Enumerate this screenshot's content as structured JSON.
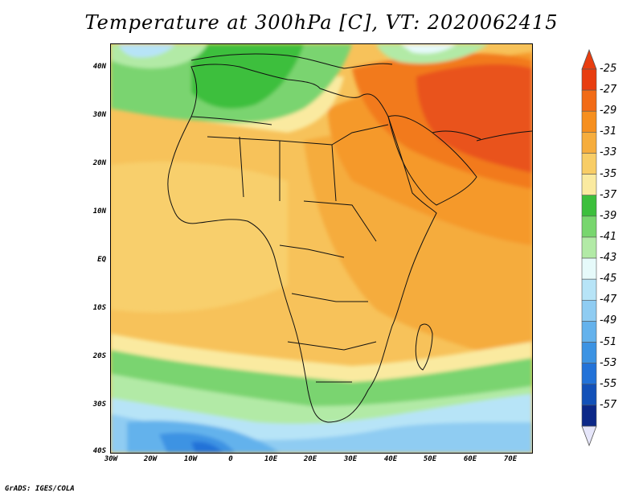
{
  "title": "Temperature at 300hPa [C], VT: 2020062415",
  "credit": "GrADS: IGES/COLA",
  "map": {
    "region": "Africa",
    "lat_ticks": [
      "40N",
      "30N",
      "20N",
      "10N",
      "EQ",
      "10S",
      "20S",
      "30S",
      "40S"
    ],
    "lon_ticks": [
      "30W",
      "20W",
      "10W",
      "0",
      "10E",
      "20E",
      "30E",
      "40E",
      "50E",
      "60E",
      "70E"
    ]
  },
  "colorbar": {
    "labels": [
      "-25",
      "-27",
      "-29",
      "-31",
      "-33",
      "-35",
      "-37",
      "-39",
      "-41",
      "-43",
      "-45",
      "-47",
      "-49",
      "-51",
      "-53",
      "-55",
      "-57"
    ],
    "colors": [
      "#e83d10",
      "#f26b16",
      "#f68f1e",
      "#f6ad3d",
      "#f8cd66",
      "#faeaa0",
      "#3cbf3c",
      "#78d66e",
      "#b2eaa6",
      "#e6fafa",
      "#b7e4f7",
      "#8fccf2",
      "#64b2ec",
      "#3c93e3",
      "#2272d8",
      "#1351b8",
      "#0c2888"
    ]
  }
}
